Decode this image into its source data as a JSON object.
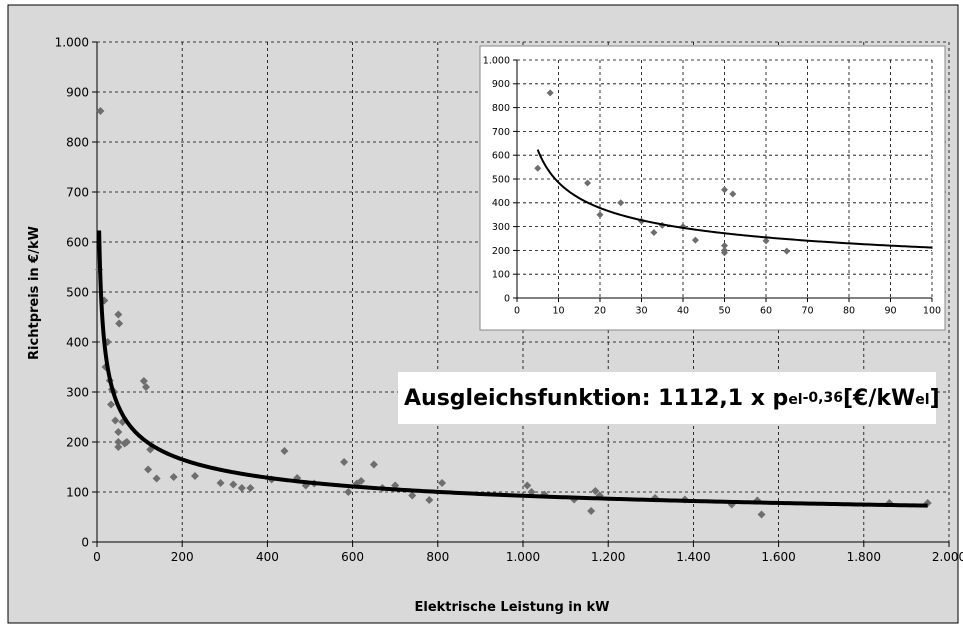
{
  "formula": {
    "prefix": "Ausgleichsfunktion: 1112,1 x p",
    "sub1": "el",
    "sup1": "-0,36",
    "mid": "[€/kW",
    "sub2": "el",
    "suffix": "]"
  },
  "colors": {
    "background": "#d9d9d9",
    "plot_area": "#d9d9d9",
    "inset_plot": "#ffffff",
    "marker": "#6e6e6e",
    "curve": "#000000",
    "grid": "#000000"
  },
  "chart_data": [
    {
      "type": "scatter",
      "xlabel": "Elektrische Leistung in kW",
      "ylabel": "Richtpreis in €/kW",
      "xlim": [
        0,
        2000
      ],
      "ylim": [
        0,
        1000
      ],
      "x_ticks": [
        0,
        200,
        400,
        600,
        800,
        1000,
        1200,
        1400,
        1600,
        1800,
        2000
      ],
      "x_tick_labels": [
        "0",
        "200",
        "400",
        "600",
        "800",
        "1.000",
        "1.200",
        "1.400",
        "1.600",
        "1.800",
        "2.000"
      ],
      "y_ticks": [
        0,
        100,
        200,
        300,
        400,
        500,
        600,
        700,
        800,
        900,
        1000
      ],
      "y_tick_labels": [
        "0",
        "100",
        "200",
        "300",
        "400",
        "500",
        "600",
        "700",
        "800",
        "900",
        "1.000"
      ],
      "grid": true,
      "fit": {
        "a": 1112.1,
        "b": -0.36,
        "x_from": 5,
        "x_to": 1950
      },
      "x": [
        5,
        8,
        17,
        20,
        25,
        30,
        33,
        35,
        40,
        43,
        50,
        50,
        50,
        50,
        52,
        60,
        65,
        70,
        110,
        115,
        120,
        125,
        140,
        180,
        230,
        290,
        320,
        340,
        360,
        410,
        440,
        470,
        490,
        510,
        580,
        590,
        610,
        620,
        650,
        670,
        700,
        740,
        780,
        810,
        1010,
        1020,
        1050,
        1120,
        1170,
        1160,
        1180,
        1310,
        1380,
        1490,
        1550,
        1560,
        1860,
        1950
      ],
      "y": [
        545,
        862,
        483,
        350,
        400,
        323,
        275,
        305,
        300,
        243,
        455,
        220,
        200,
        190,
        437,
        240,
        197,
        200,
        322,
        310,
        145,
        185,
        127,
        130,
        132,
        118,
        115,
        108,
        108,
        125,
        182,
        128,
        113,
        117,
        160,
        100,
        117,
        122,
        155,
        108,
        113,
        93,
        84,
        118,
        113,
        100,
        95,
        85,
        102,
        62,
        93,
        88,
        85,
        75,
        83,
        55,
        78,
        78
      ]
    },
    {
      "type": "scatter",
      "xlim": [
        0,
        100
      ],
      "ylim": [
        0,
        1000
      ],
      "x_ticks": [
        0,
        10,
        20,
        30,
        40,
        50,
        60,
        70,
        80,
        90,
        100
      ],
      "x_tick_labels": [
        "0",
        "10",
        "20",
        "30",
        "40",
        "50",
        "60",
        "70",
        "80",
        "90",
        "100"
      ],
      "y_ticks": [
        0,
        100,
        200,
        300,
        400,
        500,
        600,
        700,
        800,
        900,
        1000
      ],
      "y_tick_labels": [
        "0",
        "100",
        "200",
        "300",
        "400",
        "500",
        "600",
        "700",
        "800",
        "900",
        "1.000"
      ],
      "grid": true,
      "fit": {
        "a": 1112.1,
        "b": -0.36,
        "x_from": 5,
        "x_to": 100
      },
      "x": [
        5,
        8,
        17,
        20,
        25,
        30,
        33,
        35,
        40,
        43,
        50,
        50,
        50,
        50,
        52,
        60,
        65
      ],
      "y": [
        545,
        862,
        483,
        350,
        400,
        323,
        275,
        305,
        300,
        243,
        455,
        220,
        200,
        190,
        437,
        240,
        197
      ]
    }
  ]
}
